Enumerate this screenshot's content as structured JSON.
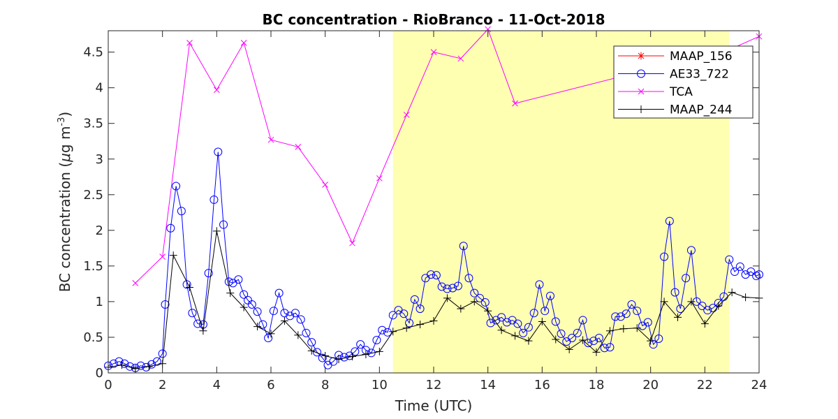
{
  "chart_data": {
    "type": "line",
    "title": "BC concentration  - RioBranco - 11-Oct-2018",
    "xlabel": "Time (UTC)",
    "ylabel_main": "BC concentration (",
    "ylabel_mu": "μ",
    "ylabel_unit": "g m",
    "ylabel_exp": "-3",
    "ylabel_close": ")",
    "xlim": [
      0,
      24
    ],
    "ylim": [
      0,
      4.8
    ],
    "xticks": [
      "0",
      "2",
      "4",
      "6",
      "8",
      "10",
      "12",
      "14",
      "16",
      "18",
      "20",
      "22",
      "24"
    ],
    "yticks": [
      "0",
      "0.5",
      "1",
      "1.5",
      "2",
      "2.5",
      "3",
      "3.5",
      "4",
      "4.5"
    ],
    "shaded_region": {
      "x_start": 10.5,
      "x_end": 22.9,
      "color": "#ffffb2"
    },
    "legend_position": "top-right",
    "grid": false,
    "series": [
      {
        "name": "MAAP_156",
        "color": "#ff0000",
        "marker": "asterisk",
        "x": [],
        "y": []
      },
      {
        "name": "AE33_722",
        "color": "#0000ff",
        "marker": "circle",
        "x": [
          0.0,
          0.2,
          0.4,
          0.6,
          0.8,
          1.0,
          1.2,
          1.4,
          1.6,
          1.8,
          2.0,
          2.1,
          2.3,
          2.5,
          2.7,
          2.9,
          3.1,
          3.3,
          3.5,
          3.7,
          3.9,
          4.05,
          4.25,
          4.45,
          4.6,
          4.8,
          5.0,
          5.15,
          5.3,
          5.5,
          5.7,
          5.9,
          6.1,
          6.3,
          6.5,
          6.7,
          6.9,
          7.1,
          7.3,
          7.5,
          7.7,
          7.9,
          8.1,
          8.3,
          8.5,
          8.7,
          8.9,
          9.1,
          9.3,
          9.5,
          9.7,
          9.9,
          10.1,
          10.3,
          10.5,
          10.7,
          10.9,
          11.1,
          11.3,
          11.5,
          11.7,
          11.9,
          12.1,
          12.3,
          12.5,
          12.7,
          12.9,
          13.1,
          13.3,
          13.5,
          13.7,
          13.9,
          14.1,
          14.3,
          14.5,
          14.7,
          14.9,
          15.1,
          15.3,
          15.5,
          15.7,
          15.9,
          16.1,
          16.3,
          16.5,
          16.7,
          16.9,
          17.1,
          17.3,
          17.5,
          17.7,
          17.9,
          18.1,
          18.3,
          18.5,
          18.7,
          18.9,
          19.1,
          19.3,
          19.5,
          19.7,
          19.9,
          20.1,
          20.3,
          20.5,
          20.7,
          20.9,
          21.1,
          21.3,
          21.5,
          21.7,
          21.9,
          22.1,
          22.3,
          22.5,
          22.7,
          22.9,
          23.1,
          23.3,
          23.5,
          23.7,
          23.9,
          24.0
        ],
        "y": [
          0.1,
          0.13,
          0.16,
          0.13,
          0.09,
          0.07,
          0.1,
          0.08,
          0.12,
          0.16,
          0.27,
          0.96,
          2.03,
          2.62,
          2.27,
          1.24,
          0.84,
          0.69,
          0.68,
          1.4,
          2.43,
          3.1,
          2.08,
          1.28,
          1.26,
          1.31,
          1.1,
          1.02,
          0.96,
          0.86,
          0.68,
          0.49,
          0.87,
          1.12,
          0.84,
          0.8,
          0.84,
          0.75,
          0.56,
          0.43,
          0.29,
          0.21,
          0.11,
          0.16,
          0.25,
          0.22,
          0.24,
          0.3,
          0.4,
          0.32,
          0.28,
          0.46,
          0.6,
          0.57,
          0.81,
          0.88,
          0.83,
          0.7,
          1.03,
          0.9,
          1.33,
          1.38,
          1.37,
          1.21,
          1.18,
          1.19,
          1.22,
          1.78,
          1.33,
          1.12,
          1.05,
          0.99,
          0.7,
          0.74,
          0.78,
          0.71,
          0.74,
          0.69,
          0.56,
          0.64,
          0.84,
          1.24,
          0.87,
          1.08,
          0.72,
          0.55,
          0.44,
          0.49,
          0.56,
          0.74,
          0.42,
          0.45,
          0.49,
          0.35,
          0.36,
          0.79,
          0.79,
          0.83,
          0.96,
          0.87,
          0.66,
          0.71,
          0.4,
          0.48,
          1.63,
          2.13,
          1.13,
          0.9,
          1.33,
          1.72,
          1.0,
          0.94,
          0.88,
          0.91,
          0.98,
          1.07,
          1.59,
          1.42,
          1.49,
          1.38,
          1.42,
          1.36,
          1.38
        ]
      },
      {
        "name": "TCA",
        "color": "#ff00ff",
        "marker": "x",
        "x": [
          1.0,
          2.0,
          3.0,
          4.0,
          5.0,
          6.0,
          7.0,
          8.0,
          9.0,
          10.0,
          11.0,
          12.0,
          13.0,
          14.0,
          15.0,
          23.0,
          24.0
        ],
        "y": [
          1.26,
          1.63,
          4.63,
          3.97,
          4.63,
          3.27,
          3.17,
          2.64,
          1.82,
          2.73,
          3.62,
          4.5,
          4.41,
          4.82,
          3.78,
          4.55,
          4.72
        ]
      },
      {
        "name": "MAAP_244",
        "color": "#000000",
        "marker": "plus",
        "x": [
          0.0,
          0.5,
          1.0,
          1.5,
          2.0,
          2.4,
          3.0,
          3.5,
          4.0,
          4.5,
          5.0,
          5.5,
          6.0,
          6.5,
          7.0,
          7.5,
          8.0,
          8.5,
          9.0,
          9.5,
          10.0,
          10.5,
          11.0,
          11.5,
          12.0,
          12.5,
          13.0,
          13.5,
          14.0,
          14.5,
          15.0,
          15.5,
          16.0,
          16.5,
          17.0,
          17.5,
          18.0,
          18.5,
          19.0,
          19.5,
          20.0,
          20.5,
          21.0,
          21.5,
          22.0,
          22.5,
          23.0,
          23.5,
          24.0
        ],
        "y": [
          0.08,
          0.11,
          0.06,
          0.09,
          0.13,
          1.65,
          1.2,
          0.59,
          1.99,
          1.12,
          0.92,
          0.65,
          0.55,
          0.73,
          0.53,
          0.31,
          0.24,
          0.19,
          0.23,
          0.26,
          0.3,
          0.58,
          0.63,
          0.68,
          0.73,
          1.05,
          0.9,
          1.0,
          0.87,
          0.6,
          0.52,
          0.45,
          0.72,
          0.47,
          0.33,
          0.46,
          0.29,
          0.59,
          0.62,
          0.63,
          0.45,
          1.0,
          0.78,
          1.0,
          0.69,
          0.94,
          1.13,
          1.06,
          1.05
        ]
      }
    ]
  }
}
